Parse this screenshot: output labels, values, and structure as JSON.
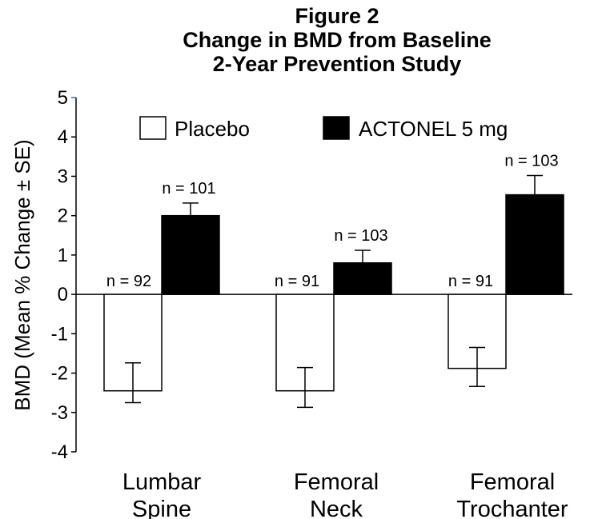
{
  "chart_data": {
    "type": "bar",
    "title": [
      "Figure 2",
      "Change in BMD from Baseline",
      "2-Year Prevention Study"
    ],
    "ylabel": "BMD (Mean % Change ± SE)",
    "ylim": [
      -4,
      5
    ],
    "yticks": [
      5,
      4,
      3,
      2,
      1,
      0,
      -1,
      -2,
      -3,
      -4
    ],
    "yticklabels": [
      "5",
      "4",
      "3",
      "2",
      "1",
      "0",
      "-1",
      "-2",
      "-3",
      "-4"
    ],
    "grid": false,
    "legend_position": "top",
    "categories": [
      [
        "Lumbar",
        "Spine"
      ],
      [
        "Femoral",
        "Neck"
      ],
      [
        "Femoral",
        "Trochanter"
      ]
    ],
    "series": [
      {
        "name": "Placebo",
        "fill": "#ffffff",
        "values": [
          -2.45,
          -2.45,
          -1.88
        ],
        "se_low": [
          -2.75,
          -2.87,
          -2.34
        ],
        "se_high": [
          -1.74,
          -1.86,
          -1.35
        ],
        "n_labels": [
          "n = 92",
          "n = 91",
          "n = 91"
        ]
      },
      {
        "name": "ACTONEL 5 mg",
        "fill": "#000000",
        "values": [
          2.0,
          0.8,
          2.53
        ],
        "se_low": [
          2.0,
          0.8,
          2.53
        ],
        "se_high": [
          2.32,
          1.12,
          3.02
        ],
        "n_labels": [
          "n = 101",
          "n = 103",
          "n = 103"
        ]
      }
    ]
  }
}
